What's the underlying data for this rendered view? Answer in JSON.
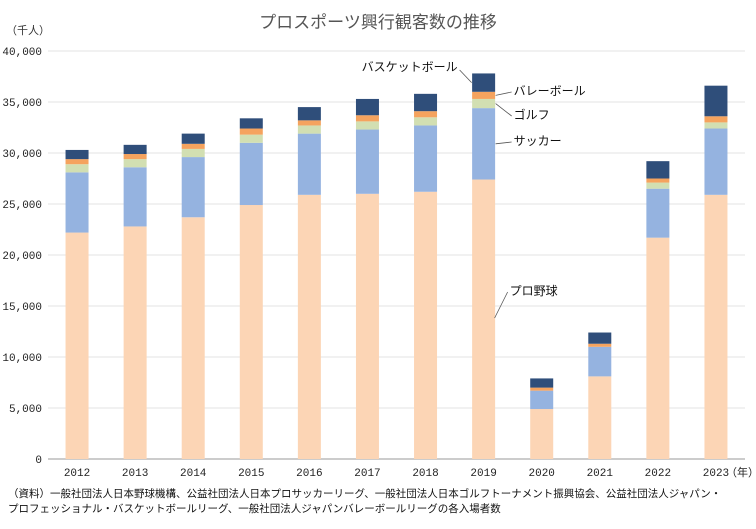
{
  "chart_data": {
    "type": "bar",
    "stacked": true,
    "title": "プロスポーツ興行観客数の推移",
    "unit_label": "（千人）",
    "x_unit_label": "（年）",
    "ylim": [
      0,
      40000
    ],
    "y_ticks": [
      0,
      5000,
      10000,
      15000,
      20000,
      25000,
      30000,
      35000,
      40000
    ],
    "y_tick_labels": [
      "0",
      "5,000",
      "10,000",
      "15,000",
      "20,000",
      "25,000",
      "30,000",
      "35,000",
      "40,000"
    ],
    "categories": [
      "2012",
      "2013",
      "2014",
      "2015",
      "2016",
      "2017",
      "2018",
      "2019",
      "2020",
      "2021",
      "2022",
      "2023"
    ],
    "series": [
      {
        "name": "プロ野球",
        "color": "#fcd5b5",
        "values": [
          22200,
          22800,
          23700,
          24900,
          25900,
          26000,
          26200,
          27400,
          4900,
          8100,
          21700,
          25900
        ]
      },
      {
        "name": "サッカー",
        "color": "#95b3e0",
        "values": [
          5900,
          5800,
          5900,
          6100,
          6000,
          6300,
          6500,
          7000,
          1800,
          2900,
          4800,
          6500
        ]
      },
      {
        "name": "ゴルフ",
        "color": "#d2dfb2",
        "values": [
          800,
          800,
          800,
          800,
          800,
          800,
          800,
          900,
          0,
          0,
          600,
          600
        ]
      },
      {
        "name": "バレーボール",
        "color": "#f5a35e",
        "values": [
          500,
          500,
          500,
          600,
          500,
          600,
          600,
          700,
          300,
          300,
          400,
          600
        ]
      },
      {
        "name": "バスケットボール",
        "color": "#2f4e7a",
        "values": [
          900,
          900,
          1000,
          1000,
          1300,
          1600,
          1700,
          1800,
          900,
          1100,
          1700,
          3000
        ]
      }
    ],
    "legend_placement": "annotations beside 2019 bar"
  },
  "source_lines": [
    "（資料）一般社団法人日本野球機構、公益社団法人日本プロサッカーリーグ、一般社団法人日本ゴルフトーナメント振興協会、公益社団法人ジャパン・",
    "プロフェッショナル・バスケットボールリーグ、一般社団法人ジャパンバレーボールリーグの各入場者数"
  ]
}
